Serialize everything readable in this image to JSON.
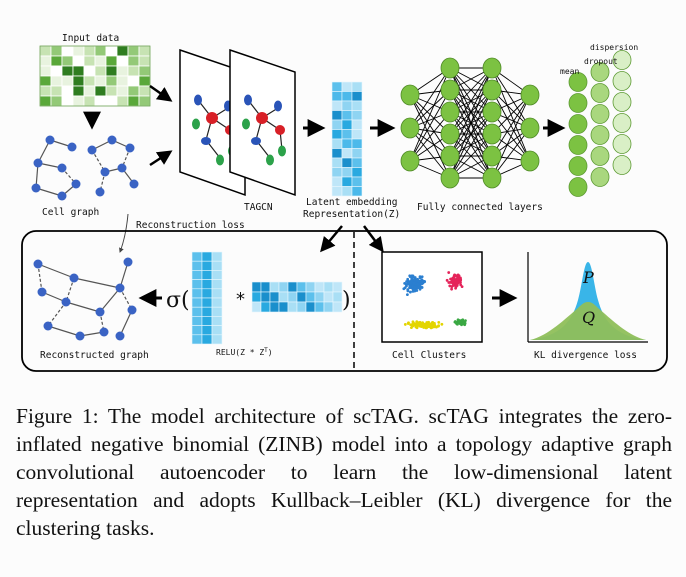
{
  "labels": {
    "input_data": "Input data",
    "cell_graph": "Cell graph",
    "tagcn": "TAGCN",
    "latent_line1": "Latent embedding",
    "latent_line2": "Representation(Z)",
    "fc_layers": "Fully connected layers",
    "dispersion": "dispersion",
    "dropout": "dropout",
    "mean": "mean",
    "reconstruction_loss": "Reconstruction loss",
    "reconstructed_graph": "Reconstructed graph",
    "sigma": "σ(",
    "times": "*",
    "close_paren": ")",
    "relu": "RELU(Z * Z",
    "relu_sup": "T",
    "relu_close": ")",
    "cell_clusters": "Cell Clusters",
    "kl_loss": "KL divergence loss",
    "p": "P",
    "q": "Q"
  },
  "caption": "Figure 1: The model architecture of scTAG. scTAG integrates the zero-inflated negative binomial (ZINB) model into a topology adaptive graph convolutional autoencoder to learn the low-dimensional latent representation and adopts Kullback–Leibler (KL) divergence for the clustering tasks.",
  "colors": {
    "heatmap_green": "#5aa83a",
    "node_blue": "#3a63c4",
    "latent_blue": "#29a9e0",
    "fc_green": "#7cc242",
    "cluster_blue": "#2b7fd0",
    "cluster_red": "#e5245a",
    "cluster_yellow": "#e3d500",
    "cluster_green": "#3aa843",
    "kl_blue": "#39b5e8",
    "kl_green": "#8fbf5a"
  }
}
